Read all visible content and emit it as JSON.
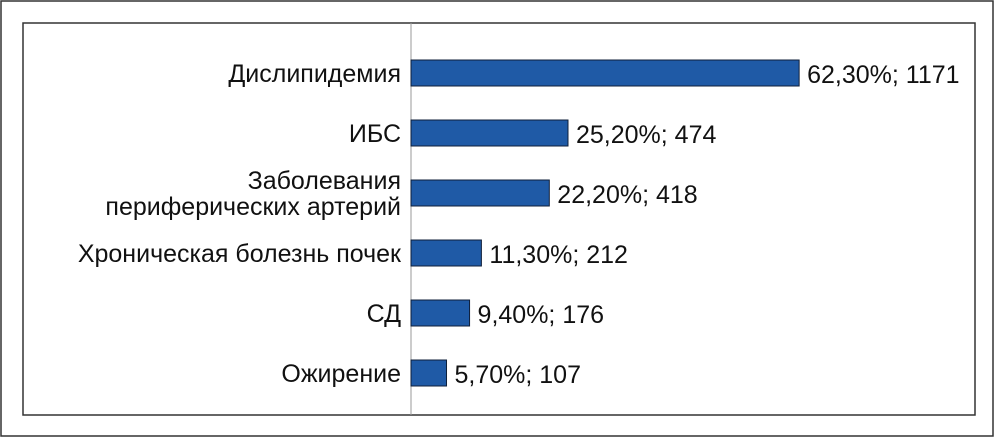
{
  "colors": {
    "bar_fill": "#1f5aa6",
    "bar_stroke": "#0f1f3a",
    "frame": "#333333",
    "axis": "#9a9a9a",
    "text": "#111111"
  },
  "chart_data": {
    "type": "bar",
    "orientation": "horizontal",
    "categories": [
      [
        "Дислипидемия"
      ],
      [
        "ИБС"
      ],
      [
        "Заболевания",
        "периферических артерий"
      ],
      [
        "Хроническая болезнь почек"
      ],
      [
        "СД"
      ],
      [
        "Ожирение"
      ]
    ],
    "values": [
      62.3,
      25.2,
      22.2,
      11.3,
      9.4,
      5.7
    ],
    "counts": [
      1171,
      474,
      418,
      212,
      176,
      107
    ],
    "data_labels": [
      "62,30%; 1171",
      "25,20%; 474",
      "22,20%; 418",
      "11,30%; 212",
      "9,40%; 176",
      "5,70%; 107"
    ],
    "xlim": [
      0,
      100
    ],
    "grid": false,
    "legend": "none"
  }
}
